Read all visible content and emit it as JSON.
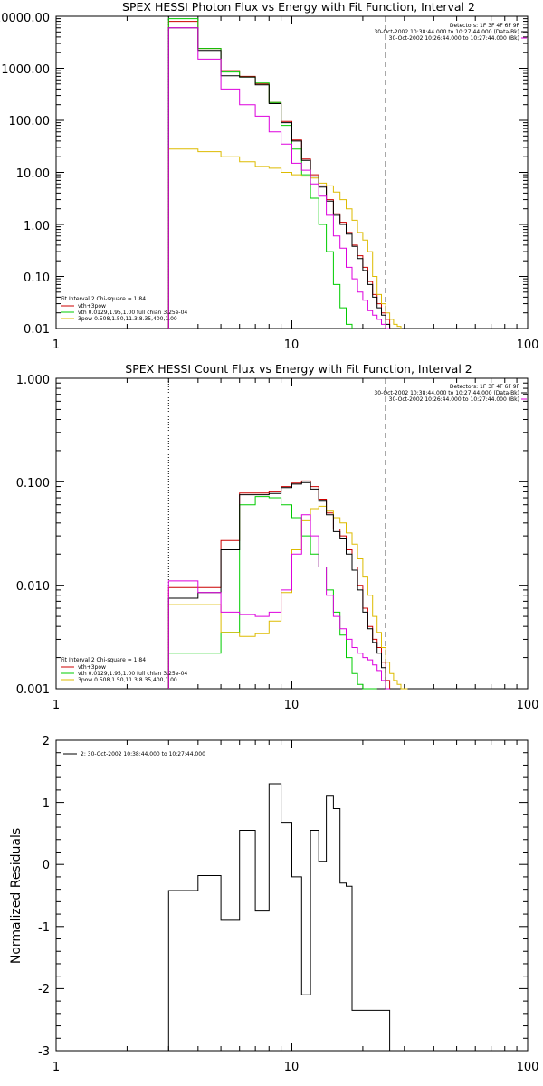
{
  "chart_data": [
    {
      "type": "line",
      "title": "SPEX HESSI Photon Flux vs Energy with Fit Function, Interval 2",
      "xlabel": "",
      "ylabel": "",
      "x_scale": "log",
      "y_scale": "log",
      "xlim": [
        1,
        100
      ],
      "ylim": [
        0.01,
        10000
      ],
      "x_ticks": [
        "1",
        "10",
        "100"
      ],
      "y_ticks": [
        "0.01",
        "0.10",
        "1.00",
        "10.00",
        "100.00",
        "1000.00",
        "10000.00"
      ],
      "vlines": [
        {
          "x": 3,
          "style": "dotted",
          "color": "#000000"
        },
        {
          "x": 25,
          "style": "dashed",
          "color": "#000000"
        }
      ],
      "header_lines": [
        "Detectors: 1F 3F 4F 6F 9F",
        "30-Oct-2002 10:38:44.000 to 10:27:44.000 (Data-Bk)",
        "30-Oct-2002 10:26:44.000 to 10:27:44.000 (Bk)"
      ],
      "fit_info": "Fit Interval 2  Chi-square = 1.84",
      "series": [
        {
          "name": "vth+3pow",
          "color": "#cc0000",
          "step": true,
          "x": [
            3,
            4,
            5,
            6,
            7,
            8,
            9,
            10,
            11,
            12,
            13,
            14,
            15,
            16,
            17,
            18,
            19,
            20,
            21,
            22,
            23,
            24,
            25
          ],
          "values": [
            8000,
            2400,
            900,
            700,
            500,
            220,
            95,
            42,
            18,
            9,
            5.5,
            3,
            1.6,
            1.1,
            0.7,
            0.4,
            0.25,
            0.15,
            0.08,
            0.045,
            0.03,
            0.02,
            0.015
          ]
        },
        {
          "name": "vth 0.0129,1.95,1.00  full chian 3.25e-04",
          "color": "#00cc00",
          "step": true,
          "x": [
            3,
            4,
            5,
            6,
            7,
            8,
            9,
            10,
            11,
            12,
            13,
            14,
            15,
            16,
            17
          ],
          "values": [
            9000,
            2400,
            850,
            680,
            520,
            220,
            80,
            28,
            9,
            3.2,
            1,
            0.3,
            0.07,
            0.025,
            0.012
          ]
        },
        {
          "name": "3pow 0.508,1.50,11.3,8.35,400,1.00",
          "color": "#ddbb00",
          "step": true,
          "x": [
            3,
            4,
            5,
            6,
            7,
            8,
            9,
            10,
            11,
            12,
            13,
            14,
            15,
            16,
            17,
            18,
            19,
            20,
            21,
            22,
            23,
            24,
            25,
            26,
            27,
            28
          ],
          "values": [
            28,
            25,
            20,
            16,
            13,
            12,
            10,
            9,
            8.5,
            7.8,
            6.2,
            5.5,
            4.2,
            3,
            2,
            1.2,
            0.7,
            0.5,
            0.3,
            0.1,
            0.045,
            0.03,
            0.02,
            0.015,
            0.012,
            0.011
          ]
        },
        {
          "name": "",
          "color": "#000000",
          "step": true,
          "x": [
            3,
            4,
            5,
            6,
            7,
            8,
            9,
            10,
            11,
            12,
            13,
            14,
            15,
            16,
            17,
            18,
            19,
            20,
            21,
            22,
            23,
            24,
            25
          ],
          "values": [
            6000,
            2200,
            720,
            680,
            480,
            210,
            90,
            40,
            17,
            8.5,
            5.2,
            2.8,
            1.5,
            1,
            0.65,
            0.38,
            0.22,
            0.13,
            0.07,
            0.04,
            0.025,
            0.018,
            0.012
          ]
        },
        {
          "name": "",
          "color": "#dd00dd",
          "step": true,
          "x": [
            3,
            4,
            5,
            6,
            7,
            8,
            9,
            10,
            11,
            12,
            13,
            14,
            15,
            16,
            17,
            18,
            19,
            20,
            21,
            22,
            23,
            24,
            25
          ],
          "values": [
            6000,
            1500,
            400,
            200,
            120,
            60,
            35,
            15,
            11,
            6,
            3.5,
            1.5,
            0.6,
            0.35,
            0.15,
            0.09,
            0.05,
            0.035,
            0.022,
            0.018,
            0.015,
            0.012,
            0.01
          ]
        }
      ]
    },
    {
      "type": "line",
      "title": "SPEX HESSI Count Flux vs Energy with Fit Function, Interval 2",
      "xlabel": "",
      "ylabel": "",
      "x_scale": "log",
      "y_scale": "log",
      "xlim": [
        1,
        100
      ],
      "ylim": [
        0.001,
        1
      ],
      "x_ticks": [
        "1",
        "10",
        "100"
      ],
      "y_ticks": [
        "0.001",
        "0.010",
        "0.100",
        "1.000"
      ],
      "vlines": [
        {
          "x": 3,
          "style": "dotted",
          "color": "#000000"
        },
        {
          "x": 25,
          "style": "dashed",
          "color": "#000000"
        }
      ],
      "header_lines": [
        "Detectors: 1F 3F 4F 6F 9F",
        "30-Oct-2002 10:38:44.000 to 10:27:44.000 (Data-Bk)",
        "30-Oct-2002 10:26:44.000 to 10:27:44.000 (Bk)"
      ],
      "fit_info": "Fit Interval 2  Chi-square = 1.84",
      "series": [
        {
          "name": "vth+3pow",
          "color": "#cc0000",
          "step": true,
          "x": [
            3,
            4,
            5,
            6,
            7,
            8,
            9,
            10,
            11,
            12,
            13,
            14,
            15,
            16,
            17,
            18,
            19,
            20,
            21,
            22,
            23,
            24,
            25
          ],
          "values": [
            0.0095,
            0.0095,
            0.027,
            0.078,
            0.078,
            0.08,
            0.09,
            0.097,
            0.102,
            0.09,
            0.068,
            0.05,
            0.035,
            0.03,
            0.022,
            0.015,
            0.01,
            0.006,
            0.004,
            0.003,
            0.0025,
            0.0018,
            0.0012
          ]
        },
        {
          "name": "vth 0.0129,1.95,1.00  full chian 3.25e-04",
          "color": "#00cc00",
          "step": true,
          "x": [
            3,
            4,
            5,
            6,
            7,
            8,
            9,
            10,
            11,
            12,
            13,
            14,
            15,
            16,
            17,
            18,
            19,
            20,
            21,
            22
          ],
          "values": [
            0.0022,
            0.0022,
            0.0035,
            0.06,
            0.072,
            0.07,
            0.06,
            0.045,
            0.03,
            0.02,
            0.015,
            0.009,
            0.0055,
            0.0033,
            0.002,
            0.0014,
            0.0011,
            0.001,
            0.001,
            0.001
          ]
        },
        {
          "name": "3pow 0.508,1.50,11.3,8.35,400,1.00",
          "color": "#ddbb00",
          "step": true,
          "x": [
            3,
            4,
            5,
            6,
            7,
            8,
            9,
            10,
            11,
            12,
            13,
            14,
            15,
            16,
            17,
            18,
            19,
            20,
            21,
            22,
            23,
            24,
            25,
            26,
            27,
            28,
            29,
            30
          ],
          "values": [
            0.0065,
            0.0065,
            0.0035,
            0.0032,
            0.0034,
            0.0045,
            0.0085,
            0.022,
            0.042,
            0.055,
            0.058,
            0.052,
            0.045,
            0.04,
            0.032,
            0.025,
            0.018,
            0.012,
            0.008,
            0.005,
            0.0035,
            0.0025,
            0.0018,
            0.0014,
            0.0012,
            0.0011,
            0.001,
            0.001
          ]
        },
        {
          "name": "",
          "color": "#000000",
          "step": true,
          "x": [
            3,
            4,
            5,
            6,
            7,
            8,
            9,
            10,
            11,
            12,
            13,
            14,
            15,
            16,
            17,
            18,
            19,
            20,
            21,
            22,
            23,
            24,
            25
          ],
          "values": [
            0.0075,
            0.0085,
            0.022,
            0.075,
            0.075,
            0.077,
            0.088,
            0.095,
            0.098,
            0.085,
            0.065,
            0.048,
            0.033,
            0.028,
            0.02,
            0.014,
            0.009,
            0.0055,
            0.0038,
            0.0028,
            0.0022,
            0.0016,
            0.001
          ]
        },
        {
          "name": "",
          "color": "#dd00dd",
          "step": true,
          "x": [
            3,
            4,
            5,
            6,
            7,
            8,
            9,
            10,
            11,
            12,
            13,
            14,
            15,
            16,
            17,
            18,
            19,
            20,
            21,
            22,
            23,
            24,
            25
          ],
          "values": [
            0.011,
            0.0085,
            0.0055,
            0.0052,
            0.005,
            0.0055,
            0.009,
            0.02,
            0.048,
            0.03,
            0.015,
            0.008,
            0.005,
            0.0038,
            0.003,
            0.0025,
            0.0022,
            0.002,
            0.0019,
            0.0017,
            0.0015,
            0.0012,
            0.001
          ]
        }
      ]
    },
    {
      "type": "line",
      "title": "",
      "xlabel": "",
      "ylabel": "Normalized Residuals",
      "x_scale": "log",
      "y_scale": "linear",
      "xlim": [
        1,
        100
      ],
      "ylim": [
        -3,
        2
      ],
      "x_ticks": [
        "1",
        "10",
        "100"
      ],
      "y_ticks": [
        "-3",
        "-2",
        "-1",
        "0",
        "1",
        "2"
      ],
      "legend": "2: 30-Oct-2002 10:38:44.000 to 10:27:44.000",
      "series": [
        {
          "name": "2: 30-Oct-2002 10:38:44.000 to 10:27:44.000",
          "color": "#000000",
          "step": true,
          "x": [
            3,
            3.5,
            4,
            4.5,
            5,
            5.5,
            6,
            6.5,
            7,
            7.5,
            8,
            8.5,
            9,
            9.5,
            10,
            11,
            12,
            13,
            14,
            15,
            16,
            17,
            18,
            19,
            20,
            21,
            22,
            23,
            24,
            25
          ],
          "values": [
            -0.42,
            -0.42,
            -0.18,
            -0.18,
            -0.9,
            -0.9,
            0.55,
            0.55,
            -0.75,
            -0.75,
            1.3,
            1.3,
            0.68,
            0.68,
            -0.2,
            -2.1,
            0.55,
            0.05,
            1.1,
            0.9,
            -0.3,
            -0.35,
            -2.35,
            -2.35,
            -2.35,
            -2.35,
            -2.35,
            -2.35,
            -2.35,
            -2.35
          ]
        }
      ]
    }
  ]
}
